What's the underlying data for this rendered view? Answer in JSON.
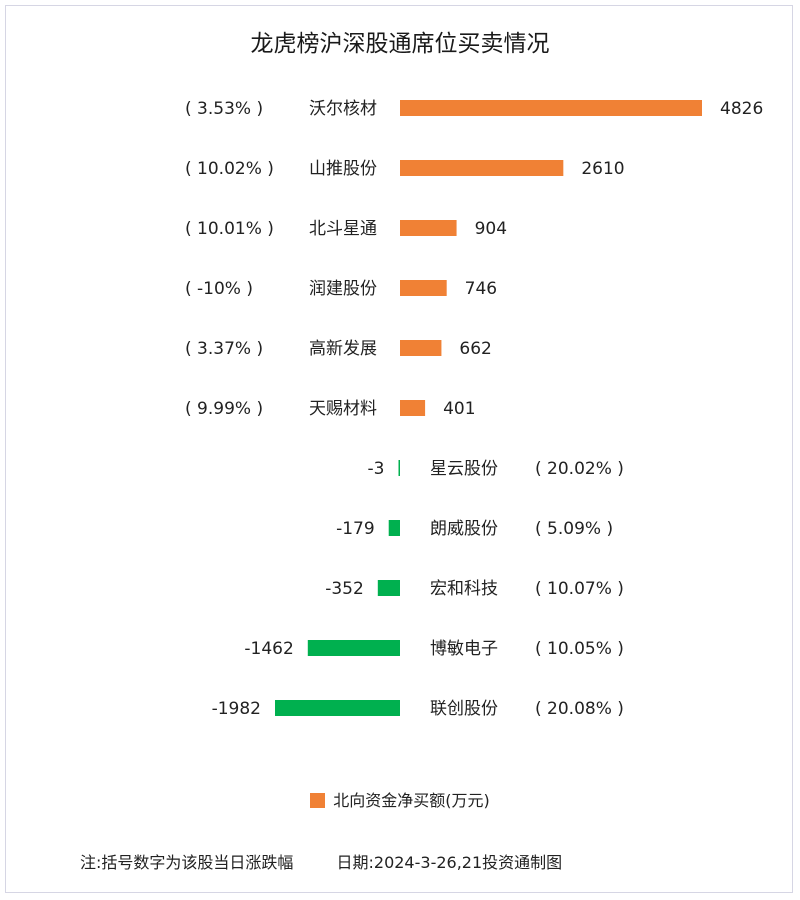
{
  "chart_data": {
    "type": "bar",
    "title": "龙虎榜沪深股通席位买卖情况",
    "categories": [
      "沃尔核材",
      "山推股份",
      "北斗星通",
      "润建股份",
      "高新发展",
      "天赐材料",
      "星云股份",
      "朗威股份",
      "宏和科技",
      "博敏电子",
      "联创股份"
    ],
    "values": [
      4826,
      2610,
      904,
      746,
      662,
      401,
      -3,
      -179,
      -352,
      -1462,
      -1982
    ],
    "value_labels": [
      "4826",
      "2610",
      "904",
      "746",
      "662",
      "401",
      "-3",
      "-179",
      "-352",
      "-1462",
      "-1982"
    ],
    "change_labels": [
      "( 3.53% )",
      "( 10.02% )",
      "( 10.01% )",
      "( -10% )",
      "( 3.37% )",
      "( 9.99% )",
      "( 20.02% )",
      "( 5.09% )",
      "( 10.07% )",
      "( 10.05% )",
      "( 20.08% )"
    ],
    "legend": [
      {
        "name": "北向资金净买额(万元)",
        "color": "#f08135"
      }
    ],
    "colors": {
      "positive": "#f08135",
      "negative": "#00b04f"
    },
    "orientation": "horizontal",
    "grid": false,
    "legend_position": "bottom"
  },
  "footnote": {
    "note": "注:括号数字为该股当日涨跌幅",
    "date": "日期:2024-3-26,21投资通制图"
  }
}
